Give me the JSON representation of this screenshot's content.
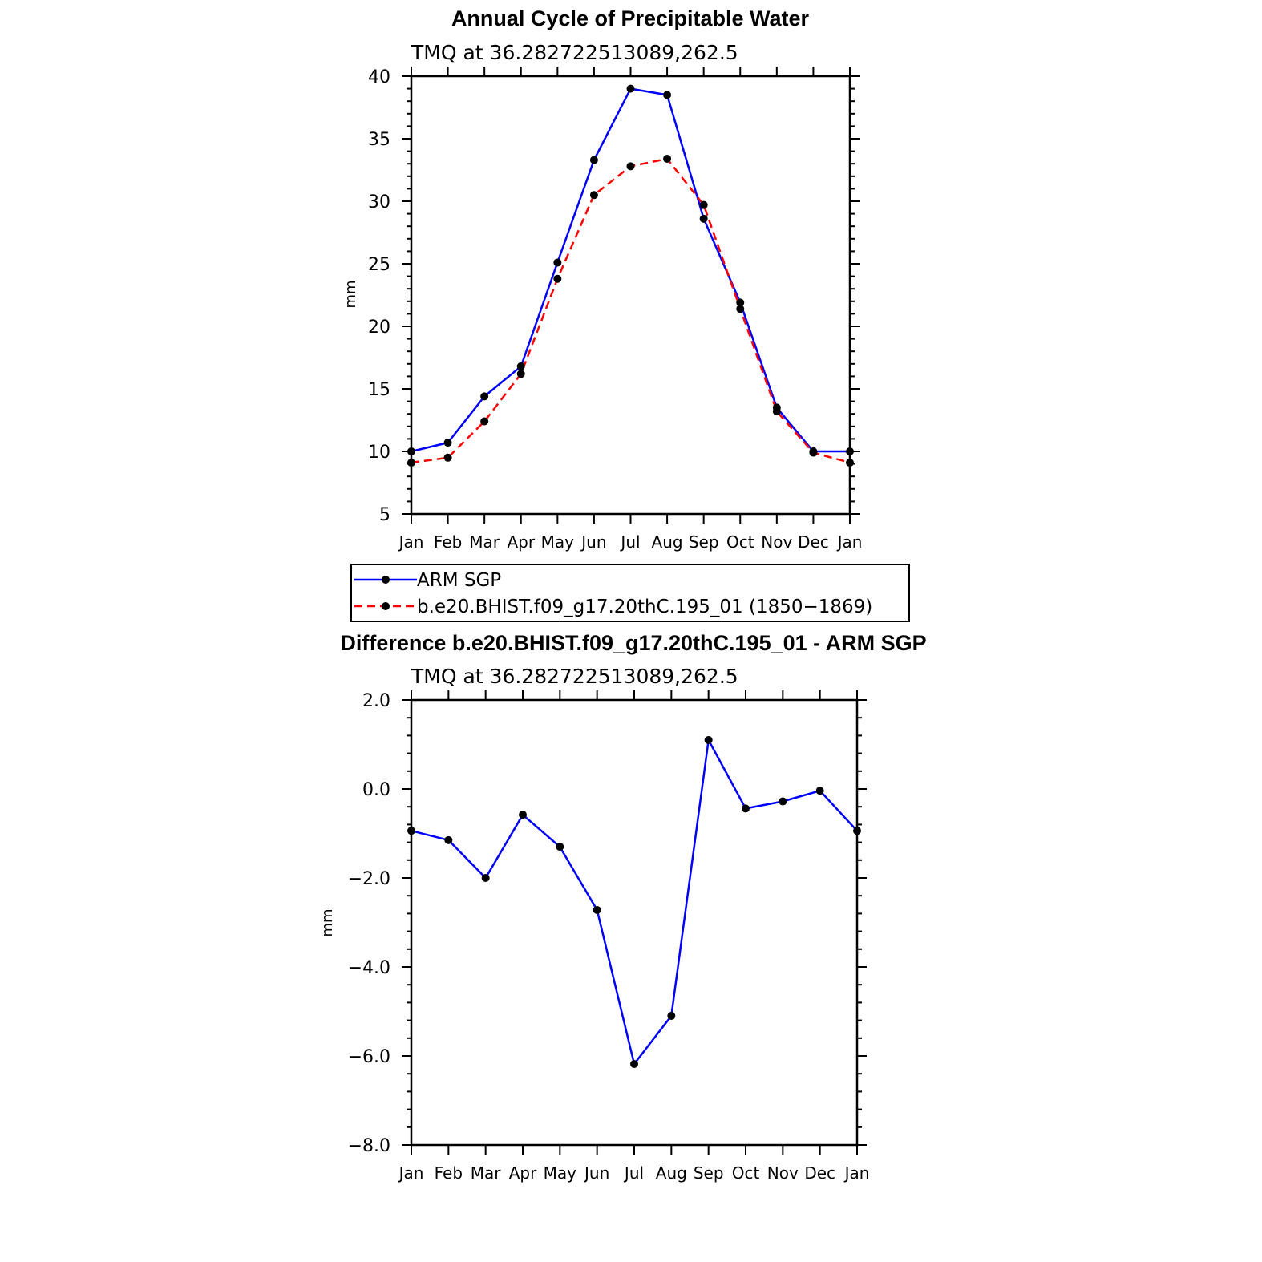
{
  "chart_data": [
    {
      "type": "line",
      "title": "Annual Cycle of Precipitable Water",
      "subtitle": "TMQ at 36.282722513089,262.5",
      "ylabel": "mm",
      "xlabel": "",
      "categories": [
        "Jan",
        "Feb",
        "Mar",
        "Apr",
        "May",
        "Jun",
        "Jul",
        "Aug",
        "Sep",
        "Oct",
        "Nov",
        "Dec",
        "Jan"
      ],
      "ylim": [
        5,
        40
      ],
      "yticks": [
        5,
        10,
        15,
        20,
        25,
        30,
        35,
        40
      ],
      "ytick_labels": [
        "5",
        "10",
        "15",
        "20",
        "25",
        "30",
        "35",
        "40"
      ],
      "series": [
        {
          "name": "ARM SGP",
          "color": "#0000ff",
          "style": "solid",
          "values": [
            10.0,
            10.7,
            14.4,
            16.8,
            25.1,
            33.3,
            39.0,
            38.5,
            28.6,
            21.9,
            13.5,
            10.0,
            10.0
          ]
        },
        {
          "name": "b.e20.BHIST.f09_g17.20thC.195_01 (1850-1869)",
          "color": "#ff0000",
          "style": "dashed",
          "values": [
            9.1,
            9.5,
            12.4,
            16.2,
            23.8,
            30.5,
            32.8,
            33.4,
            29.7,
            21.4,
            13.2,
            9.9,
            9.1
          ]
        }
      ],
      "legend": {
        "position": "below",
        "entries": [
          "ARM SGP",
          "b.e20.BHIST.f09_g17.20thC.195_01 (1850−1869)"
        ]
      }
    },
    {
      "type": "line",
      "title": "Difference b.e20.BHIST.f09_g17.20thC.195_01 - ARM SGP",
      "subtitle": "TMQ at 36.282722513089,262.5",
      "ylabel": "mm",
      "xlabel": "",
      "categories": [
        "Jan",
        "Feb",
        "Mar",
        "Apr",
        "May",
        "Jun",
        "Jul",
        "Aug",
        "Sep",
        "Oct",
        "Nov",
        "Dec",
        "Jan"
      ],
      "ylim": [
        -8,
        2
      ],
      "yticks": [
        -8,
        -6,
        -4,
        -2,
        0,
        2
      ],
      "ytick_labels": [
        "−8.0",
        "−6.0",
        "−4.0",
        "−2.0",
        "0.0",
        "2.0"
      ],
      "series": [
        {
          "color": "#0000ff",
          "style": "solid",
          "values": [
            -0.94,
            -1.15,
            -2.0,
            -0.58,
            -1.3,
            -2.72,
            -6.18,
            -5.1,
            1.1,
            -0.44,
            -0.28,
            -0.04,
            -0.94
          ]
        }
      ]
    }
  ]
}
